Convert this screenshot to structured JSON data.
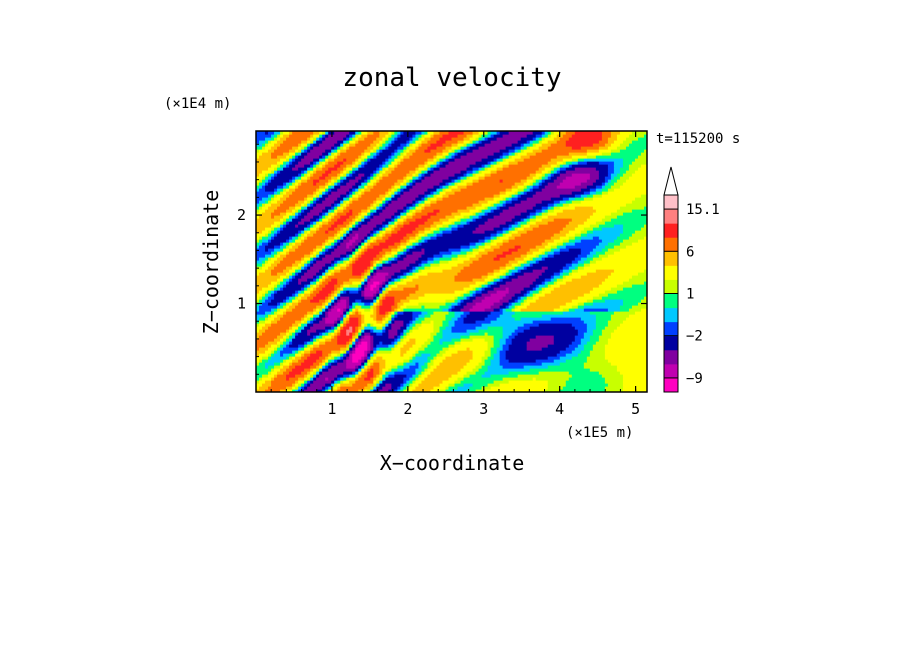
{
  "chart_data": {
    "type": "heatmap",
    "title": "zonal velocity",
    "xlabel": "X−coordinate",
    "ylabel": "Z−coordinate",
    "x_scale_label": "(×1E5 m)",
    "y_scale_label": "(×1E4 m)",
    "time_label": "t=115200 s",
    "xlim": [
      0,
      5.15
    ],
    "ylim": [
      0,
      2.95
    ],
    "xticks": [
      1,
      2,
      3,
      4,
      5
    ],
    "yticks": [
      1,
      2
    ],
    "grid": false,
    "colorbar": {
      "levels": [
        -12,
        -9,
        -6,
        -4,
        -2,
        -1,
        0,
        1,
        2,
        4,
        6,
        8.5,
        12,
        15.1
      ],
      "colors": [
        "#ff00c0",
        "#c000b0",
        "#8000a0",
        "#0000a0",
        "#0040ff",
        "#00c8ff",
        "#00ff80",
        "#c8ff00",
        "#ffff00",
        "#ffc000",
        "#ff7000",
        "#ff2020",
        "#ff8080",
        "#ffc0c8"
      ],
      "tick_labels": [
        "15.1",
        "6",
        "1",
        "−2",
        "−9"
      ],
      "tick_values": [
        15.1,
        6,
        1,
        -2,
        -9
      ],
      "extend": "max"
    }
  }
}
